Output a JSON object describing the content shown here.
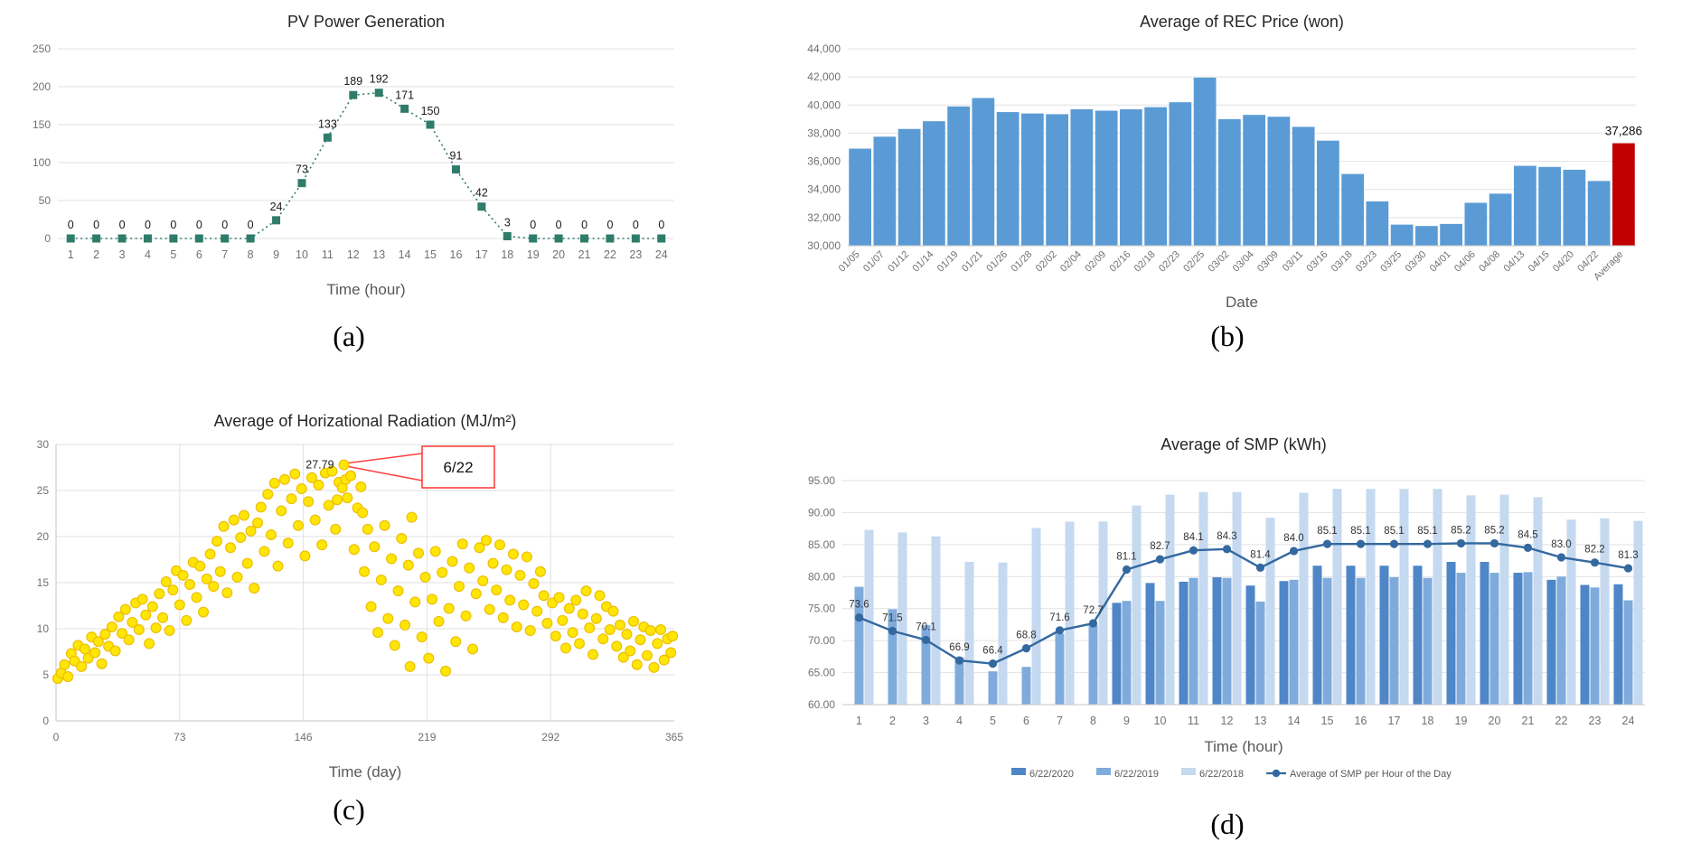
{
  "figure": {
    "captions": {
      "a": "(a)",
      "b": "(b)",
      "c": "(c)",
      "d": "(d)"
    }
  },
  "chart_data": [
    {
      "id": "pv",
      "type": "line",
      "title": "PV Power Generation",
      "xlabel": "Time (hour)",
      "ylabel": "",
      "categories": [
        1,
        2,
        3,
        4,
        5,
        6,
        7,
        8,
        9,
        10,
        11,
        12,
        13,
        14,
        15,
        16,
        17,
        18,
        19,
        20,
        21,
        22,
        23,
        24
      ],
      "values": [
        0,
        0,
        0,
        0,
        0,
        0,
        0,
        0,
        24,
        73,
        133,
        189,
        192,
        171,
        150,
        91,
        42,
        3,
        0,
        0,
        0,
        0,
        0,
        0
      ],
      "ylim": [
        0,
        250
      ],
      "ytick_step": 50,
      "grid": true,
      "line_style": "dotted",
      "marker": "square",
      "data_labels": true,
      "color": "#2F7C6B",
      "label_color": "#1a1a1a"
    },
    {
      "id": "rec",
      "type": "bar",
      "title": "Average of REC Price (won)",
      "xlabel": "Date",
      "ylabel": "",
      "categories": [
        "01/05",
        "01/07",
        "01/12",
        "01/14",
        "01/19",
        "01/21",
        "01/26",
        "01/28",
        "02/02",
        "02/04",
        "02/09",
        "02/16",
        "02/18",
        "02/23",
        "02/25",
        "03/02",
        "03/04",
        "03/09",
        "03/11",
        "03/16",
        "03/18",
        "03/23",
        "03/25",
        "03/30",
        "04/01",
        "04/06",
        "04/08",
        "04/13",
        "04/15",
        "04/20",
        "04/22",
        "Average"
      ],
      "values": [
        36900,
        37750,
        38300,
        38850,
        39900,
        40500,
        39500,
        39400,
        39350,
        39700,
        39600,
        39700,
        39850,
        40200,
        41950,
        39000,
        39300,
        39170,
        38450,
        37470,
        35100,
        33150,
        31500,
        31400,
        31550,
        33050,
        33700,
        35680,
        35600,
        35400,
        34600,
        37286
      ],
      "ylim": [
        30000,
        44000
      ],
      "ytick_step": 2000,
      "ytick_format": "comma",
      "grid": true,
      "x_label_rotation": -45,
      "bar_color": "#5B9BD5",
      "highlight_index": 31,
      "highlight_color": "#C00000",
      "highlight_label": "37,286"
    },
    {
      "id": "rad",
      "type": "scatter",
      "title": "Average of Horizational Radiation (MJ/m²)",
      "xlabel": "Time (day)",
      "ylabel": "",
      "xlim": [
        0,
        365
      ],
      "xticks": [
        0,
        73,
        146,
        219,
        292,
        365
      ],
      "ylim": [
        0,
        30
      ],
      "ytick_step": 5,
      "grid": true,
      "point_fill": "#FFE605",
      "point_edge": "#EDBE04",
      "points": [
        [
          1,
          4.6
        ],
        [
          3,
          5.2
        ],
        [
          5,
          6.1
        ],
        [
          7,
          4.8
        ],
        [
          9,
          7.3
        ],
        [
          11,
          6.5
        ],
        [
          13,
          8.2
        ],
        [
          15,
          5.9
        ],
        [
          17,
          7.8
        ],
        [
          19,
          6.8
        ],
        [
          21,
          9.1
        ],
        [
          23,
          7.4
        ],
        [
          25,
          8.6
        ],
        [
          27,
          6.2
        ],
        [
          29,
          9.4
        ],
        [
          31,
          8.1
        ],
        [
          33,
          10.2
        ],
        [
          35,
          7.6
        ],
        [
          37,
          11.3
        ],
        [
          39,
          9.5
        ],
        [
          41,
          12.1
        ],
        [
          43,
          8.8
        ],
        [
          45,
          10.7
        ],
        [
          47,
          12.8
        ],
        [
          49,
          9.9
        ],
        [
          51,
          13.2
        ],
        [
          53,
          11.5
        ],
        [
          55,
          8.4
        ],
        [
          57,
          12.4
        ],
        [
          59,
          10.1
        ],
        [
          61,
          13.8
        ],
        [
          63,
          11.2
        ],
        [
          65,
          15.1
        ],
        [
          67,
          9.8
        ],
        [
          69,
          14.2
        ],
        [
          71,
          16.3
        ],
        [
          73,
          12.6
        ],
        [
          75,
          15.8
        ],
        [
          77,
          10.9
        ],
        [
          79,
          14.8
        ],
        [
          81,
          17.2
        ],
        [
          83,
          13.4
        ],
        [
          85,
          16.8
        ],
        [
          87,
          11.8
        ],
        [
          89,
          15.4
        ],
        [
          91,
          18.1
        ],
        [
          93,
          14.6
        ],
        [
          95,
          19.5
        ],
        [
          97,
          16.2
        ],
        [
          99,
          21.1
        ],
        [
          101,
          13.9
        ],
        [
          103,
          18.8
        ],
        [
          105,
          21.8
        ],
        [
          107,
          15.6
        ],
        [
          109,
          19.9
        ],
        [
          111,
          22.3
        ],
        [
          113,
          17.1
        ],
        [
          115,
          20.6
        ],
        [
          117,
          14.4
        ],
        [
          119,
          21.5
        ],
        [
          121,
          23.2
        ],
        [
          123,
          18.4
        ],
        [
          125,
          24.6
        ],
        [
          127,
          20.2
        ],
        [
          129,
          25.8
        ],
        [
          131,
          16.8
        ],
        [
          133,
          22.8
        ],
        [
          135,
          26.2
        ],
        [
          137,
          19.3
        ],
        [
          139,
          24.1
        ],
        [
          141,
          26.8
        ],
        [
          143,
          21.2
        ],
        [
          145,
          25.2
        ],
        [
          147,
          17.9
        ],
        [
          149,
          23.8
        ],
        [
          151,
          26.4
        ],
        [
          153,
          21.8
        ],
        [
          155,
          25.6
        ],
        [
          157,
          19.1
        ],
        [
          159,
          26.9
        ],
        [
          161,
          23.4
        ],
        [
          163,
          27.1
        ],
        [
          165,
          20.8
        ],
        [
          166,
          24.0
        ],
        [
          167,
          25.9
        ],
        [
          169,
          25.3
        ],
        [
          171,
          26.2
        ],
        [
          172,
          24.2
        ],
        [
          174,
          26.6
        ],
        [
          176,
          18.6
        ],
        [
          178,
          23.1
        ],
        [
          180,
          25.4
        ],
        [
          181,
          22.6
        ],
        [
          182,
          16.2
        ],
        [
          184,
          20.8
        ],
        [
          186,
          12.4
        ],
        [
          188,
          18.9
        ],
        [
          190,
          9.6
        ],
        [
          192,
          15.3
        ],
        [
          194,
          21.2
        ],
        [
          196,
          11.1
        ],
        [
          198,
          17.6
        ],
        [
          200,
          8.2
        ],
        [
          202,
          14.1
        ],
        [
          204,
          19.8
        ],
        [
          206,
          10.4
        ],
        [
          208,
          16.9
        ],
        [
          209,
          5.9
        ],
        [
          210,
          22.1
        ],
        [
          212,
          12.9
        ],
        [
          214,
          18.2
        ],
        [
          216,
          9.1
        ],
        [
          218,
          15.6
        ],
        [
          220,
          6.8
        ],
        [
          222,
          13.2
        ],
        [
          224,
          18.4
        ],
        [
          226,
          10.8
        ],
        [
          228,
          16.1
        ],
        [
          230,
          5.4
        ],
        [
          232,
          12.2
        ],
        [
          234,
          17.3
        ],
        [
          236,
          8.6
        ],
        [
          238,
          14.6
        ],
        [
          240,
          19.2
        ],
        [
          242,
          11.4
        ],
        [
          244,
          16.6
        ],
        [
          246,
          7.8
        ],
        [
          248,
          13.8
        ],
        [
          250,
          18.8
        ],
        [
          252,
          15.2
        ],
        [
          254,
          19.6
        ],
        [
          256,
          12.1
        ],
        [
          258,
          17.1
        ],
        [
          260,
          14.2
        ],
        [
          262,
          19.1
        ],
        [
          264,
          11.2
        ],
        [
          266,
          16.4
        ],
        [
          268,
          13.1
        ],
        [
          270,
          18.1
        ],
        [
          272,
          10.2
        ],
        [
          274,
          15.8
        ],
        [
          276,
          12.6
        ],
        [
          278,
          17.8
        ],
        [
          280,
          9.8
        ],
        [
          282,
          14.9
        ],
        [
          284,
          11.9
        ],
        [
          286,
          16.2
        ],
        [
          288,
          13.6
        ],
        [
          290,
          10.6
        ],
        [
          293,
          12.8
        ],
        [
          295,
          9.2
        ],
        [
          297,
          13.4
        ],
        [
          299,
          10.9
        ],
        [
          301,
          7.9
        ],
        [
          303,
          12.2
        ],
        [
          305,
          9.6
        ],
        [
          307,
          13.1
        ],
        [
          309,
          8.4
        ],
        [
          311,
          11.6
        ],
        [
          313,
          14.1
        ],
        [
          315,
          10.1
        ],
        [
          317,
          7.2
        ],
        [
          319,
          11.1
        ],
        [
          321,
          13.6
        ],
        [
          323,
          8.9
        ],
        [
          325,
          12.4
        ],
        [
          327,
          9.9
        ],
        [
          329,
          11.9
        ],
        [
          331,
          8.1
        ],
        [
          333,
          10.4
        ],
        [
          335,
          6.9
        ],
        [
          337,
          9.4
        ],
        [
          339,
          7.6
        ],
        [
          341,
          10.8
        ],
        [
          343,
          6.1
        ],
        [
          345,
          8.8
        ],
        [
          347,
          10.2
        ],
        [
          349,
          7.1
        ],
        [
          351,
          9.8
        ],
        [
          353,
          5.8
        ],
        [
          355,
          8.4
        ],
        [
          357,
          9.9
        ],
        [
          359,
          6.6
        ],
        [
          361,
          8.9
        ],
        [
          363,
          7.4
        ],
        [
          364,
          9.2
        ]
      ],
      "annotation": {
        "point": [
          170,
          27.79
        ],
        "value_label": "27.79",
        "callout_label": "6/22",
        "callout_color": "#FF4040"
      }
    },
    {
      "id": "smp",
      "type": "combo",
      "title": "Average of SMP (kWh)",
      "xlabel": "Time (hour)",
      "ylabel": "",
      "categories": [
        1,
        2,
        3,
        4,
        5,
        6,
        7,
        8,
        9,
        10,
        11,
        12,
        13,
        14,
        15,
        16,
        17,
        18,
        19,
        20,
        21,
        22,
        23,
        24
      ],
      "series": [
        {
          "name": "6/22/2020",
          "color": "#4E86C8",
          "values": [
            null,
            null,
            null,
            null,
            null,
            null,
            null,
            null,
            75.9,
            79.0,
            79.2,
            79.9,
            78.6,
            79.3,
            81.7,
            81.7,
            81.7,
            81.7,
            82.3,
            82.3,
            80.6,
            79.5,
            78.7,
            78.8
          ]
        },
        {
          "name": "6/22/2019",
          "color": "#7FABDC",
          "values": [
            78.4,
            74.9,
            72.4,
            67.4,
            65.2,
            65.9,
            71.1,
            72.4,
            76.2,
            76.2,
            79.8,
            79.8,
            76.1,
            79.5,
            79.8,
            79.8,
            79.9,
            79.8,
            80.6,
            80.6,
            80.7,
            80.0,
            78.3,
            76.3
          ]
        },
        {
          "name": "6/22/2018",
          "color": "#C5D9F0",
          "values": [
            87.3,
            86.9,
            86.3,
            82.3,
            82.2,
            87.6,
            88.6,
            88.6,
            91.1,
            92.8,
            93.2,
            93.2,
            89.2,
            93.1,
            93.7,
            93.7,
            93.7,
            93.7,
            92.7,
            92.8,
            92.4,
            88.9,
            89.1,
            88.7
          ]
        }
      ],
      "line_series": {
        "name": "Average of SMP per Hour of the Day",
        "color": "#33699F",
        "values": [
          73.6,
          71.5,
          70.1,
          66.9,
          66.4,
          68.8,
          71.6,
          72.7,
          81.1,
          82.7,
          84.1,
          84.3,
          81.4,
          84.0,
          85.1,
          85.1,
          85.1,
          85.1,
          85.2,
          85.2,
          84.5,
          83.0,
          82.2,
          81.3
        ],
        "data_labels": true
      },
      "ylim": [
        60,
        95
      ],
      "ytick_step": 5,
      "ytick_format": "2dp",
      "grid": true,
      "legend_position": "bottom"
    }
  ]
}
